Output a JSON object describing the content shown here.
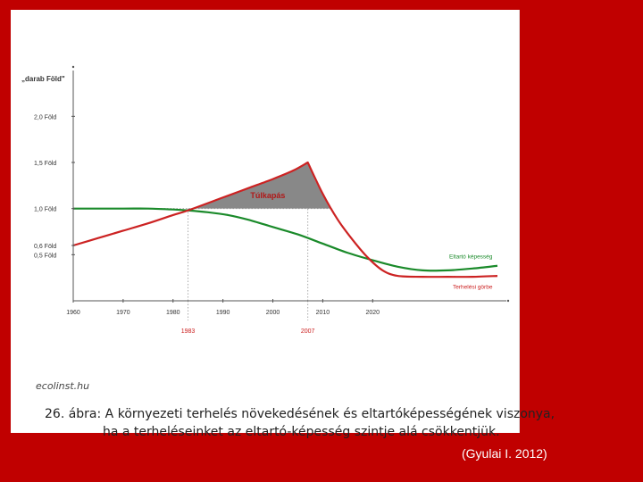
{
  "caption": {
    "line1": "26. ábra: A környezeti terhelés növekedésének és eltartóképességének viszonya,",
    "line2": "ha a terheléseinket az eltartó-képesség szintje alá csökkentjük."
  },
  "watermark": "ecolinst.hu",
  "credit": "(Gyulai I. 2012)",
  "chart_data": {
    "type": "line",
    "title": "",
    "ylabel": "„darab Föld\"",
    "xlabel": "",
    "xlim": [
      1960,
      2045
    ],
    "ylim": [
      0,
      2.4
    ],
    "x_ticks": [
      "1960",
      "1970",
      "1980",
      "1990",
      "2000",
      "2010",
      "2020"
    ],
    "x_tick_values": [
      1960,
      1970,
      1980,
      1990,
      2000,
      2010,
      2020
    ],
    "y_ticks": [
      {
        "label": "0,5 Föld",
        "value": 0.5
      },
      {
        "label": "0,6 Föld",
        "value": 0.6
      },
      {
        "label": "1,0 Föld",
        "value": 1.0
      },
      {
        "label": "1,5 Föld",
        "value": 1.5
      },
      {
        "label": "2,0 Föld",
        "value": 2.0
      }
    ],
    "marked_years": [
      {
        "label": "1983",
        "value": 1983
      },
      {
        "label": "2007",
        "value": 2007
      }
    ],
    "reference_line": 1.0,
    "overshoot_label": "Túlkapás",
    "series": [
      {
        "name": "Eltartó képesség",
        "color": "#1a8a2a",
        "x": [
          1960,
          1970,
          1975,
          1980,
          1983,
          1987,
          1991,
          1995,
          2000,
          2005,
          2010,
          2015,
          2020,
          2025,
          2030,
          2035,
          2040,
          2045
        ],
        "y": [
          1.0,
          1.0,
          1.0,
          0.99,
          0.98,
          0.96,
          0.93,
          0.88,
          0.8,
          0.72,
          0.62,
          0.52,
          0.44,
          0.37,
          0.33,
          0.33,
          0.35,
          0.38
        ]
      },
      {
        "name": "Terhelési görbe",
        "color": "#cc2222",
        "x": [
          1960,
          1965,
          1970,
          1975,
          1980,
          1983,
          1990,
          1995,
          2000,
          2004,
          2007,
          2010,
          2013,
          2016,
          2019,
          2022,
          2025,
          2030,
          2035,
          2040,
          2045
        ],
        "y": [
          0.6,
          0.68,
          0.76,
          0.84,
          0.93,
          0.98,
          1.12,
          1.22,
          1.32,
          1.41,
          1.5,
          1.16,
          0.88,
          0.66,
          0.47,
          0.33,
          0.27,
          0.26,
          0.26,
          0.26,
          0.27
        ]
      }
    ],
    "colors": {
      "axis": "#555555",
      "tick_text": "#333333",
      "marked_year_text": "#cc2222",
      "overshoot_fill": "#888888",
      "guide": "#aaaaaa"
    }
  }
}
